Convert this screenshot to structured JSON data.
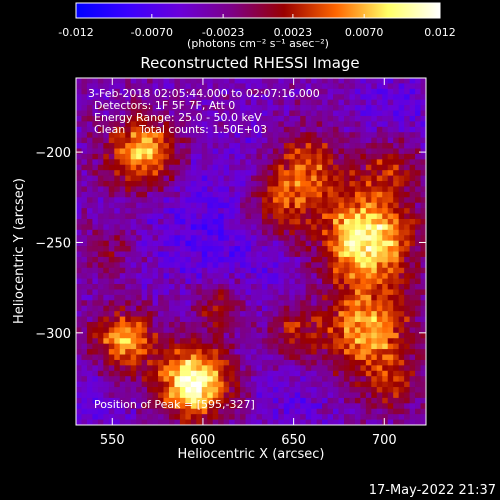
{
  "colorbar": {
    "colormap": [
      "#0000ff",
      "#3a00ff",
      "#6a00d9",
      "#7d0086",
      "#990000",
      "#ff6600",
      "#ffff66",
      "#ffffff"
    ],
    "ticks": [
      "-0.012",
      "-0.0070",
      "-0.0023",
      "0.0023",
      "0.0070",
      "0.012"
    ],
    "tick_values": [
      -0.012,
      -0.007,
      -0.0023,
      0.0023,
      0.007,
      0.012
    ],
    "range": [
      -0.012,
      0.012
    ],
    "unit_label": "(photons cm⁻² s⁻¹ asec⁻²)"
  },
  "chart_data": {
    "type": "heatmap",
    "title": "Reconstructed RHESSI Image",
    "xlabel": "Heliocentric X (arcsec)",
    "ylabel": "Heliocentric Y (arcsec)",
    "xlim": [
      530,
      723
    ],
    "ylim": [
      -351,
      -159
    ],
    "xticks": [
      550,
      600,
      650,
      700
    ],
    "yticks": [
      -200,
      -250,
      -300
    ],
    "peak": {
      "x": 595,
      "y": -327
    },
    "annotations": [
      "3-Feb-2018 02:05:44.000 to 02:07:16.000",
      "Detectors: 1F 5F 7F, Att 0",
      "Energy Range: 25.0 - 50.0 keV",
      "Clean    Total counts: 1.50E+03"
    ],
    "peak_label": "Position of Peak = [595,-327]"
  },
  "timestamp": "17-May-2022 21:37"
}
